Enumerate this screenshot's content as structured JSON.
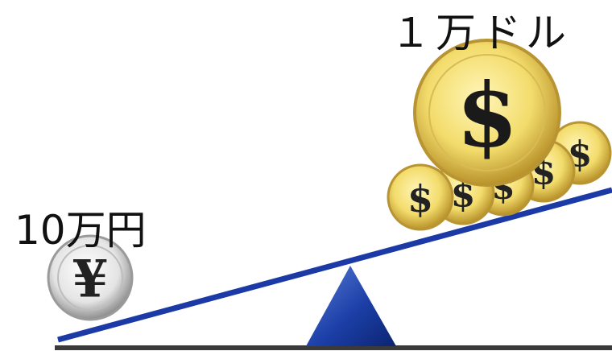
{
  "labels": {
    "left": "10万円",
    "right": "１万ドル"
  },
  "coins": {
    "yen_symbol": "¥",
    "dollar_symbol": "$"
  }
}
